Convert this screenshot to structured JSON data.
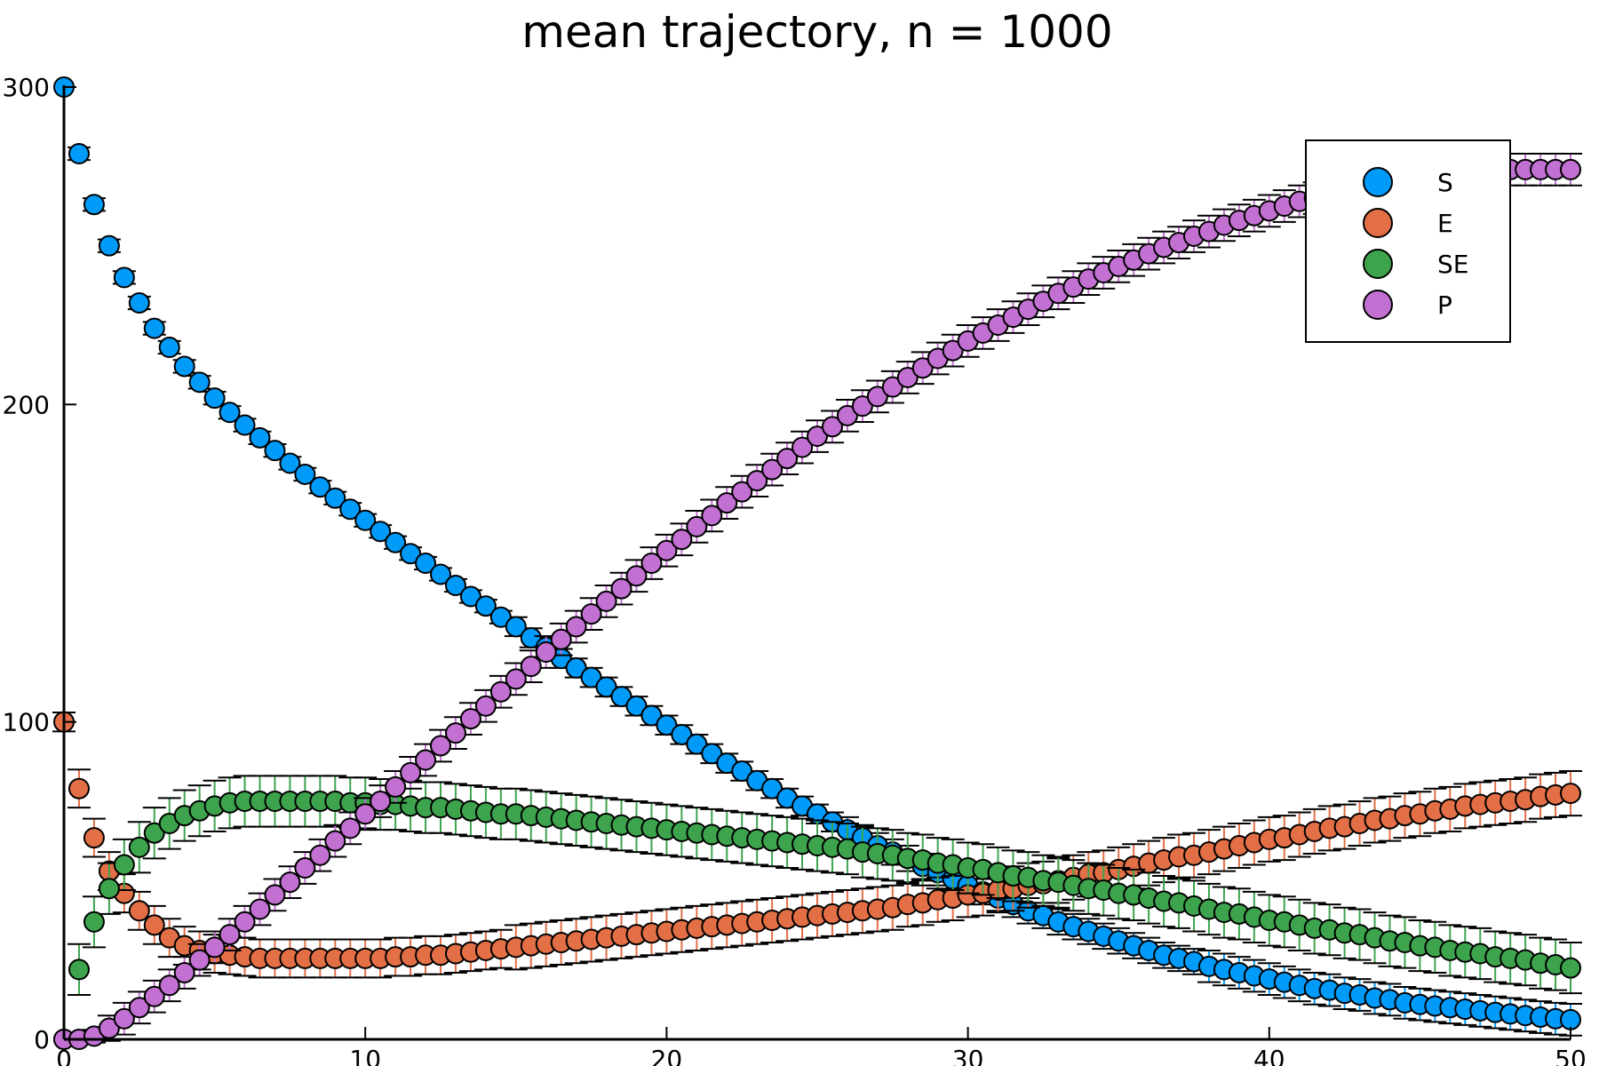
{
  "chart_data": {
    "type": "scatter",
    "title": "mean trajectory, n = 1000",
    "xlabel": "",
    "ylabel": "",
    "xlim": [
      0,
      50
    ],
    "ylim": [
      0,
      300
    ],
    "x_ticks": [
      0,
      10,
      20,
      30,
      40,
      50
    ],
    "y_ticks": [
      0,
      100,
      200,
      300
    ],
    "x_tick_labels": [
      "0",
      "10",
      "20",
      "30",
      "40",
      "50"
    ],
    "y_tick_labels": [
      "0",
      "100",
      "200",
      "300"
    ],
    "grid": false,
    "legend_position": "top-right",
    "error_bars": true,
    "x": [
      0,
      0.5,
      1,
      1.5,
      2,
      2.5,
      3,
      3.5,
      4,
      4.5,
      5,
      5.5,
      6,
      6.5,
      7,
      7.5,
      8,
      8.5,
      9,
      9.5,
      10,
      10.5,
      11,
      11.5,
      12,
      12.5,
      13,
      13.5,
      14,
      14.5,
      15,
      15.5,
      16,
      16.5,
      17,
      17.5,
      18,
      18.5,
      19,
      19.5,
      20,
      20.5,
      21,
      21.5,
      22,
      22.5,
      23,
      23.5,
      24,
      24.5,
      25,
      25.5,
      26,
      26.5,
      27,
      27.5,
      28,
      28.5,
      29,
      29.5,
      30,
      30.5,
      31,
      31.5,
      32,
      32.5,
      33,
      33.5,
      34,
      34.5,
      35,
      35.5,
      36,
      36.5,
      37,
      37.5,
      38,
      38.5,
      39,
      39.5,
      40,
      40.5,
      41,
      41.5,
      42,
      42.5,
      43,
      43.5,
      44,
      44.5,
      45,
      45.5,
      46,
      46.5,
      47,
      47.5,
      48,
      48.5,
      49,
      49.5,
      50
    ],
    "series": [
      {
        "name": "S",
        "color": "#009af9",
        "values": [
          300,
          279,
          263,
          250,
          240,
          232,
          224,
          218,
          212,
          207,
          202,
          197.5,
          193.5,
          189.5,
          185.5,
          181.5,
          178,
          174,
          170.5,
          167,
          163.5,
          160,
          156.5,
          153,
          150,
          146.5,
          143,
          139.5,
          136.5,
          133,
          130,
          126.5,
          123.5,
          120,
          117,
          114,
          111,
          108,
          105,
          102,
          99,
          96,
          93,
          90,
          87,
          84.5,
          81.5,
          79,
          76,
          73.5,
          71,
          68.5,
          66,
          63.5,
          61,
          59,
          57,
          54.5,
          52.5,
          50.5,
          48.5,
          46.5,
          44.5,
          42.5,
          40.5,
          39,
          37,
          35.5,
          34,
          32.5,
          31,
          29.5,
          28,
          26.5,
          25.5,
          24.5,
          23,
          22,
          21,
          20,
          19,
          18,
          17,
          16,
          15.5,
          14.5,
          14,
          13,
          12.5,
          11.5,
          11,
          10.5,
          10,
          9.5,
          9,
          8.5,
          8,
          7.5,
          7,
          6.5,
          6.2
        ],
        "errors": [
          0,
          2,
          2,
          2,
          2,
          2,
          2,
          2,
          2,
          2,
          2,
          2,
          2,
          2,
          2,
          2,
          2,
          2,
          2,
          2,
          2,
          2,
          2,
          2,
          2,
          2,
          2,
          2,
          2,
          2,
          3,
          3,
          3,
          3,
          3,
          3,
          3,
          3,
          3,
          3,
          3,
          3,
          3,
          3,
          3,
          3,
          3,
          3,
          3,
          3,
          3,
          3,
          4,
          4,
          4,
          4,
          4,
          4,
          4,
          4,
          4,
          4,
          4,
          4,
          4,
          4,
          4,
          4,
          4,
          4,
          4,
          4,
          4,
          4,
          4,
          4,
          5,
          5,
          5,
          5,
          5,
          5,
          5,
          5,
          5,
          5,
          5,
          5,
          5,
          5,
          5,
          5,
          5,
          5,
          5,
          5,
          5,
          5,
          5,
          5,
          5
        ]
      },
      {
        "name": "E",
        "color": "#e26f46",
        "values": [
          100,
          79,
          63.5,
          53,
          46,
          40.5,
          36,
          32,
          29.5,
          28,
          27,
          26.5,
          26,
          25.5,
          25.5,
          25.5,
          25.5,
          25.5,
          25.5,
          25.5,
          25.5,
          25.5,
          26,
          26,
          26.5,
          26.5,
          27,
          27.5,
          28,
          28.5,
          29,
          29.5,
          30,
          30.5,
          31,
          31.5,
          32,
          32.5,
          33,
          33.5,
          34,
          34.5,
          35,
          35.5,
          36,
          36.5,
          37,
          37.5,
          38,
          38.5,
          39,
          39.5,
          40,
          40.5,
          41,
          41.5,
          42.5,
          43,
          44,
          44.5,
          45.5,
          46,
          47,
          47.5,
          48.5,
          49,
          50,
          51,
          52,
          52.5,
          53.5,
          54.5,
          55.5,
          56.5,
          57.5,
          58,
          59,
          60,
          61,
          62,
          63,
          63.5,
          64.5,
          65.5,
          66.5,
          67,
          68,
          69,
          69.5,
          70.5,
          71,
          72,
          72.5,
          73.5,
          74,
          74.5,
          75,
          75.5,
          76.5,
          77,
          77.5
        ],
        "errors": [
          3,
          6,
          6,
          6,
          6,
          6,
          6,
          6,
          6,
          6,
          6,
          6,
          6,
          6,
          6,
          6,
          6,
          6,
          6,
          6,
          6,
          6,
          6,
          6,
          6,
          6,
          6,
          6,
          6,
          6,
          7,
          7,
          7,
          7,
          7,
          7,
          7,
          7,
          7,
          7,
          7,
          7,
          7,
          7,
          7,
          7,
          7,
          7,
          7,
          7,
          7,
          7,
          7,
          7,
          7,
          7,
          7,
          7,
          7,
          7,
          7,
          7,
          7,
          7,
          7,
          7,
          7,
          7,
          7,
          7,
          7,
          7,
          7,
          7,
          7,
          7,
          7,
          7,
          7,
          7,
          7,
          7,
          7,
          7,
          7,
          7,
          7,
          7,
          7,
          7,
          7,
          7,
          7,
          7,
          7,
          7,
          7,
          7,
          7,
          7,
          7
        ]
      },
      {
        "name": "SE",
        "color": "#3da44d",
        "values": [
          0,
          22,
          37,
          47.5,
          55,
          60.5,
          65,
          68,
          70.5,
          72,
          73.5,
          74.5,
          75,
          75,
          75,
          75,
          75,
          75,
          75,
          74.5,
          74.5,
          74,
          74,
          73.5,
          73,
          73,
          72.5,
          72,
          71.5,
          71,
          71,
          70.5,
          70,
          69.5,
          69,
          68.5,
          68,
          67.5,
          67,
          66.5,
          66,
          65.5,
          65,
          64.5,
          64,
          63.5,
          63,
          62.5,
          62,
          61.5,
          61,
          60.5,
          60,
          59,
          58.5,
          58,
          57,
          56.5,
          55.5,
          55,
          54,
          53.5,
          52.5,
          51.5,
          51,
          50,
          49.5,
          48.5,
          47.5,
          47,
          46,
          45.5,
          44.5,
          43.5,
          43,
          42,
          41,
          40,
          39.5,
          38.5,
          37.5,
          37,
          36,
          35,
          34.5,
          33.5,
          33,
          32,
          31,
          30.5,
          29.5,
          29,
          28,
          27.5,
          27,
          26,
          25.5,
          25,
          24,
          23.5,
          22.5
        ],
        "errors": [
          0,
          8,
          8,
          8,
          8,
          8,
          8,
          8,
          8,
          8,
          8,
          8,
          8,
          8,
          8,
          8,
          8,
          8,
          8,
          8,
          8,
          8,
          8,
          8,
          8,
          8,
          8,
          8,
          8,
          8,
          8,
          8,
          8,
          8,
          8,
          8,
          8,
          8,
          8,
          8,
          8,
          8,
          8,
          8,
          8,
          8,
          8,
          8,
          8,
          8,
          8,
          8,
          8,
          8,
          8,
          8,
          8,
          8,
          8,
          8,
          8,
          8,
          8,
          8,
          8,
          8,
          8,
          8,
          8,
          8,
          8,
          8,
          8,
          8,
          8,
          8,
          8,
          8,
          8,
          8,
          8,
          8,
          8,
          8,
          8,
          8,
          8,
          8,
          8,
          8,
          8,
          8,
          8,
          8,
          8,
          8,
          8,
          8,
          8,
          8,
          8
        ]
      },
      {
        "name": "P",
        "color": "#c271d2",
        "values": [
          0,
          0,
          1,
          3.5,
          6.5,
          10,
          13.5,
          17,
          21,
          25,
          29,
          33,
          37,
          41,
          45.5,
          49.5,
          54,
          58,
          62.5,
          66.5,
          71,
          75,
          79.5,
          84,
          88,
          92.5,
          96.5,
          101,
          105,
          109.5,
          113.5,
          117.5,
          122,
          126,
          130,
          134,
          138,
          142,
          146,
          150,
          154,
          157.5,
          161.5,
          165,
          169,
          172.5,
          176,
          179.5,
          183,
          186.5,
          190,
          193,
          196.5,
          199.5,
          202.5,
          205.5,
          208.5,
          211.5,
          214.5,
          217,
          220,
          222.5,
          225,
          227.5,
          230,
          232.5,
          235,
          237,
          239.5,
          241.5,
          243.5,
          245.5,
          247.5,
          249.5,
          251,
          253,
          254.5,
          256.5,
          258,
          259.5,
          261,
          262.5,
          264,
          265,
          266.5,
          267.5,
          268.5,
          269.5,
          270.5,
          271,
          272,
          272.5,
          273,
          273.5,
          274,
          274,
          274,
          274,
          274,
          274,
          274
        ],
        "errors": [
          0,
          0,
          2,
          4,
          5,
          5,
          5,
          5,
          5,
          5,
          5,
          5,
          5,
          5,
          5,
          5,
          5,
          5,
          5,
          5,
          5,
          5,
          5,
          5,
          5,
          5,
          5,
          5,
          5,
          5,
          5,
          5,
          5,
          5,
          5,
          5,
          5,
          5,
          5,
          5,
          5,
          5,
          5,
          5,
          5,
          5,
          5,
          5,
          5,
          5,
          5,
          5,
          5,
          5,
          5,
          5,
          5,
          5,
          5,
          5,
          5,
          5,
          5,
          5,
          5,
          5,
          5,
          5,
          5,
          5,
          5,
          5,
          5,
          5,
          5,
          5,
          5,
          5,
          5,
          5,
          5,
          5,
          5,
          5,
          5,
          5,
          5,
          5,
          5,
          5,
          5,
          5,
          5,
          5,
          5,
          5,
          5,
          5,
          5,
          5,
          5
        ]
      }
    ]
  }
}
